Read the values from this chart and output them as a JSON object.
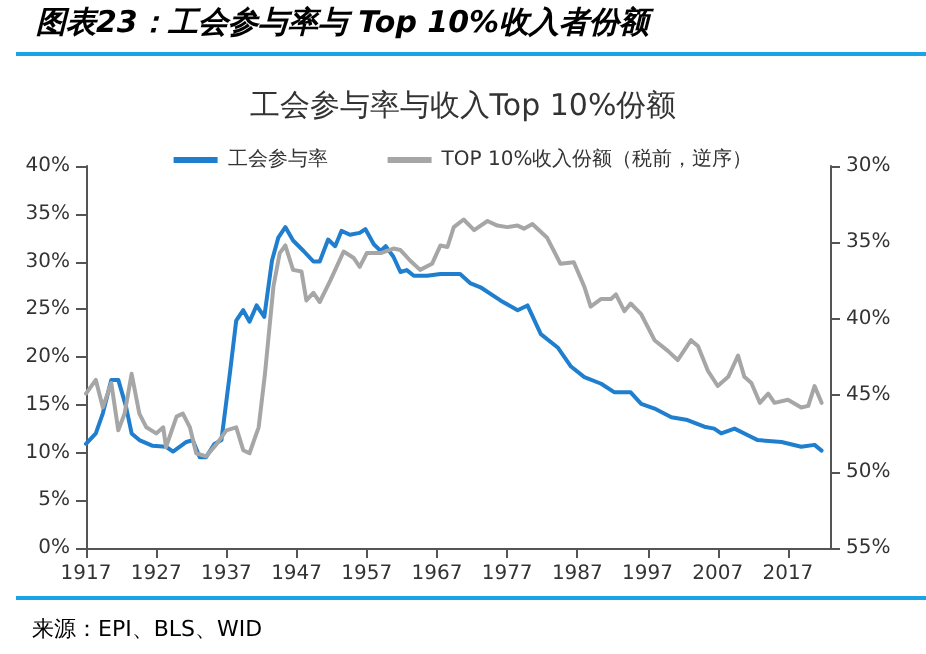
{
  "chart_data": {
    "type": "line",
    "title": "图表23：工会参与率与 Top 10%收入者份额",
    "subtitle": "工会参与率与收入Top 10%份额",
    "annotations": [
      "来源：EPI、BLS、WID"
    ],
    "legend": "top",
    "grid": false,
    "marker": "none",
    "line_style": "solid",
    "xlim": [
      1917,
      2023
    ],
    "xticks": [
      1917,
      1927,
      1937,
      1947,
      1957,
      1967,
      1977,
      1987,
      1997,
      2007,
      2017
    ],
    "ylim": [
      0,
      40
    ],
    "yticks": [
      {
        "value": 0,
        "label": "0%"
      },
      {
        "value": 5,
        "label": "5%"
      },
      {
        "value": 10,
        "label": "10%"
      },
      {
        "value": 15,
        "label": "15%"
      },
      {
        "value": 20,
        "label": "20%"
      },
      {
        "value": 25,
        "label": "25%"
      },
      {
        "value": 30,
        "label": "30%"
      },
      {
        "value": 35,
        "label": "35%"
      },
      {
        "value": 40,
        "label": "40%"
      }
    ],
    "y2lim": [
      55,
      30
    ],
    "y2ticks": [
      {
        "value": 30,
        "label": "30%"
      },
      {
        "value": 35,
        "label": "35%"
      },
      {
        "value": 40,
        "label": "40%"
      },
      {
        "value": 45,
        "label": "45%"
      },
      {
        "value": 50,
        "label": "50%"
      },
      {
        "value": 55,
        "label": "55%"
      }
    ],
    "series": [
      {
        "name": "工会参与率",
        "color": "#1f7fce",
        "x": [
          1917,
          1918.4,
          1919.4,
          1920.6,
          1921.6,
          1922.7,
          1923.5,
          1924.6,
          1926.5,
          1928.4,
          1929.4,
          1931.3,
          1932.2,
          1933.2,
          1934.1,
          1935.3,
          1936.3,
          1937.5,
          1938.4,
          1939.4,
          1940.3,
          1941.3,
          1942.4,
          1943.5,
          1944.4,
          1945.4,
          1946.5,
          1948,
          1949.4,
          1950.3,
          1951.5,
          1952.5,
          1953.4,
          1954.6,
          1956,
          1956.8,
          1958,
          1959,
          1959.7,
          1960.8,
          1961.8,
          1962.7,
          1963.7,
          1965.6,
          1967.5,
          1970.3,
          1971.8,
          1973.2,
          1976.1,
          1978.5,
          1979.9,
          1981.8,
          1984.2,
          1986.1,
          1988,
          1990.4,
          1992.3,
          1994.6,
          1996.1,
          1998,
          2000.4,
          2002.7,
          2005.1,
          2006.5,
          2007.5,
          2009.4,
          2011.3,
          2012.7,
          2016.1,
          2018.9,
          2020.8,
          2021.8
        ],
        "values": [
          10.9,
          12.0,
          14.1,
          17.6,
          17.6,
          14.8,
          12.0,
          11.3,
          10.7,
          10.6,
          10.1,
          11.1,
          11.3,
          9.5,
          9.5,
          10.9,
          11.3,
          18.3,
          23.8,
          24.9,
          23.7,
          25.4,
          24.2,
          30.1,
          32.5,
          33.6,
          32.2,
          31.1,
          30.0,
          30.0,
          32.3,
          31.6,
          33.2,
          32.8,
          33.0,
          33.4,
          31.8,
          31.1,
          31.6,
          30.5,
          28.9,
          29.1,
          28.5,
          28.5,
          28.7,
          28.7,
          27.7,
          27.3,
          25.9,
          24.9,
          25.4,
          22.4,
          21.0,
          19.0,
          17.9,
          17.2,
          16.3,
          16.3,
          15.1,
          14.6,
          13.7,
          13.4,
          12.7,
          12.5,
          12.0,
          12.5,
          11.8,
          11.3,
          11.1,
          10.6,
          10.8,
          10.2
        ]
      },
      {
        "name": "TOP 10%收入份额（税前，逆序）",
        "color": "#a6a6a6",
        "axis": "y2",
        "x": [
          1917,
          1918.4,
          1919.4,
          1920.6,
          1921.6,
          1922.5,
          1923.5,
          1924.6,
          1925.6,
          1927,
          1928,
          1928.4,
          1929.9,
          1930.8,
          1931.8,
          1932.7,
          1934.1,
          1935.6,
          1937,
          1938.4,
          1939.4,
          1940.3,
          1941.6,
          1942.5,
          1943.7,
          1944.6,
          1945.4,
          1946.5,
          1947.7,
          1948.4,
          1949.4,
          1950.3,
          1951.8,
          1953.7,
          1955.1,
          1956,
          1957,
          1959,
          1960.8,
          1961.8,
          1963.2,
          1964.6,
          1966.3,
          1967.5,
          1968.5,
          1969.4,
          1970.8,
          1972.3,
          1974.2,
          1975.6,
          1977,
          1978.5,
          1979.4,
          1980.6,
          1982.7,
          1984.6,
          1986.5,
          1988,
          1988.9,
          1990.4,
          1991.8,
          1992.5,
          1993.7,
          1994.6,
          1996.1,
          1998,
          1999.9,
          2001.3,
          2003.2,
          2004.2,
          2005.6,
          2007,
          2008.5,
          2009.9,
          2010.8,
          2011.8,
          2013,
          2014.2,
          2015.1,
          2017,
          2018.9,
          2019.9,
          2020.8,
          2021.8
        ],
        "values": [
          44.9,
          44.0,
          45.8,
          44.2,
          47.3,
          46.2,
          43.6,
          46.2,
          47.1,
          47.5,
          47.1,
          48.4,
          46.4,
          46.2,
          47.1,
          48.8,
          49.0,
          48.2,
          47.3,
          47.1,
          48.6,
          48.8,
          47.1,
          43.6,
          37.9,
          35.7,
          35.2,
          36.8,
          36.9,
          38.8,
          38.3,
          38.9,
          37.5,
          35.6,
          36.0,
          36.6,
          35.7,
          35.7,
          35.4,
          35.5,
          36.2,
          36.8,
          36.4,
          35.2,
          35.3,
          34.0,
          33.5,
          34.2,
          33.6,
          33.9,
          34.0,
          33.9,
          34.1,
          33.8,
          34.7,
          36.4,
          36.3,
          37.9,
          39.2,
          38.7,
          38.7,
          38.4,
          39.5,
          39.0,
          39.7,
          41.4,
          42.1,
          42.7,
          41.4,
          41.8,
          43.4,
          44.4,
          43.8,
          42.4,
          43.8,
          44.2,
          45.5,
          44.9,
          45.5,
          45.3,
          45.8,
          45.7,
          44.4,
          45.5
        ]
      }
    ]
  }
}
